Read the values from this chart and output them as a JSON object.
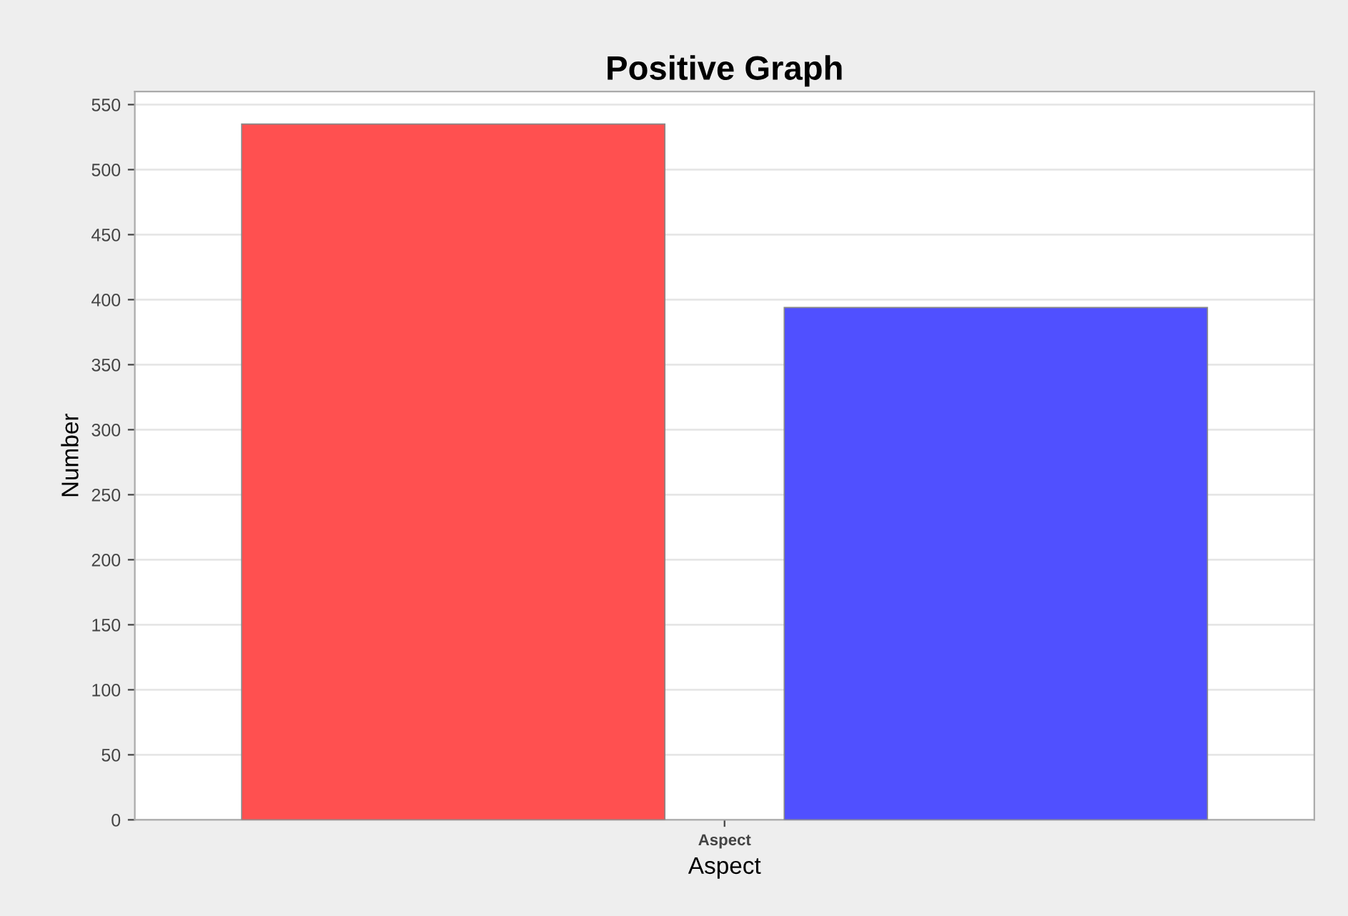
{
  "chart_data": {
    "type": "bar",
    "title": "Positive Graph",
    "xlabel": "Aspect",
    "ylabel": "Number",
    "categories": [
      "Aspect"
    ],
    "series": [
      {
        "color": "#ff5050",
        "values": [
          535
        ]
      },
      {
        "color": "#5050ff",
        "values": [
          394
        ]
      }
    ],
    "ylim": [
      0,
      560
    ],
    "yticks": [
      0,
      50,
      100,
      150,
      200,
      250,
      300,
      350,
      400,
      450,
      500,
      550
    ],
    "grid": "y",
    "legend": false
  }
}
